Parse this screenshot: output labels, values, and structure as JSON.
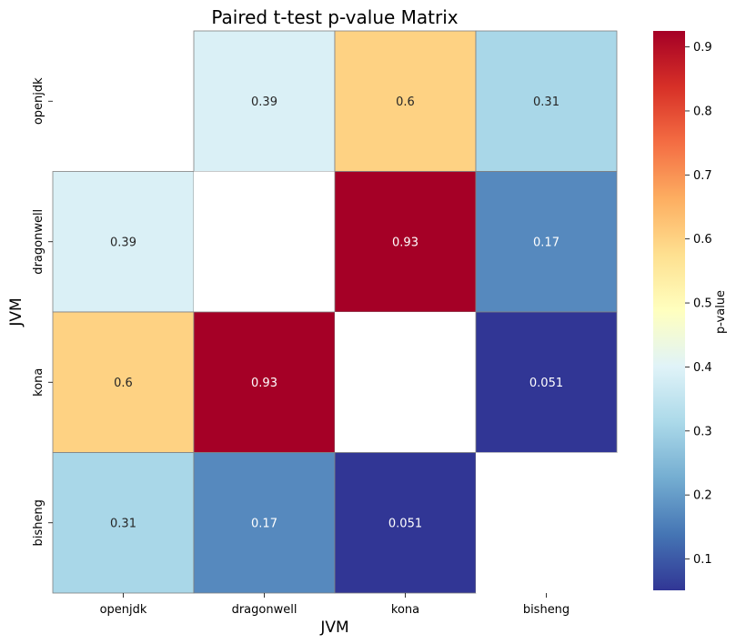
{
  "chart_data": {
    "type": "heatmap",
    "title": "Paired t-test p-value Matrix",
    "xlabel": "JVM",
    "ylabel": "JVM",
    "x_categories": [
      "openjdk",
      "dragonwell",
      "kona",
      "bisheng"
    ],
    "y_categories": [
      "openjdk",
      "dragonwell",
      "kona",
      "bisheng"
    ],
    "values": [
      [
        null,
        0.39,
        0.6,
        0.31
      ],
      [
        0.39,
        null,
        0.93,
        0.17
      ],
      [
        0.6,
        0.93,
        null,
        0.051
      ],
      [
        0.31,
        0.17,
        0.051,
        null
      ]
    ],
    "value_labels": [
      [
        "",
        "0.39",
        "0.6",
        "0.31"
      ],
      [
        "0.39",
        "",
        "0.93",
        "0.17"
      ],
      [
        "0.6",
        "0.93",
        "",
        "0.051"
      ],
      [
        "0.31",
        "0.17",
        "0.051",
        ""
      ]
    ],
    "colorbar": {
      "label": "p-value",
      "range": [
        0.051,
        0.925
      ],
      "ticks": [
        0.1,
        0.2,
        0.3,
        0.4,
        0.5,
        0.6,
        0.7,
        0.8,
        0.9
      ],
      "tick_labels": [
        "0.1",
        "0.2",
        "0.3",
        "0.4",
        "0.5",
        "0.6",
        "0.7",
        "0.8",
        "0.9"
      ],
      "colormap": "RdYlBu_r"
    },
    "diagonal_masked": true,
    "grid": false
  }
}
